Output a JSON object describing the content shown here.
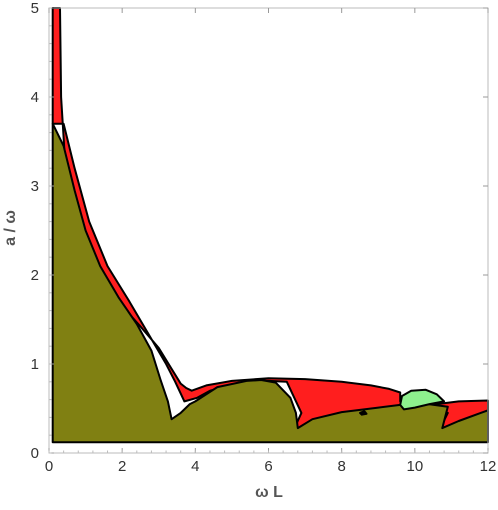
{
  "chart_data": {
    "type": "area",
    "title": "",
    "xlabel": "ω L",
    "ylabel": "a / ω",
    "xlim": [
      0,
      12
    ],
    "ylim": [
      0,
      5
    ],
    "xticks": [
      "0",
      "2",
      "4",
      "6",
      "8",
      "10",
      "12"
    ],
    "yticks": [
      "0",
      "1",
      "2",
      "3",
      "4",
      "5"
    ],
    "grid": false,
    "legend": "none",
    "colors": {
      "olive": "#808012",
      "red": "#ff1e1e",
      "green": "#8ef08e",
      "outline": "#000000"
    },
    "regions": [
      {
        "color": "red",
        "points": [
          [
            0.1,
            5.0
          ],
          [
            0.3,
            5.0
          ],
          [
            0.33,
            4.0
          ],
          [
            0.42,
            3.4
          ],
          [
            0.6,
            2.9
          ],
          [
            0.85,
            2.55
          ],
          [
            1.2,
            2.2
          ],
          [
            1.6,
            1.9
          ],
          [
            2.0,
            1.65
          ],
          [
            2.5,
            1.42
          ],
          [
            3.0,
            1.18
          ],
          [
            3.3,
            0.98
          ],
          [
            3.6,
            0.78
          ],
          [
            3.75,
            0.73
          ],
          [
            3.9,
            0.7
          ],
          [
            4.3,
            0.76
          ],
          [
            5.0,
            0.81
          ],
          [
            6.0,
            0.84
          ],
          [
            7.0,
            0.83
          ],
          [
            8.0,
            0.8
          ],
          [
            8.8,
            0.76
          ],
          [
            9.3,
            0.72
          ],
          [
            9.6,
            0.68
          ],
          [
            9.6,
            0.58
          ],
          [
            10.6,
            0.55
          ],
          [
            11.2,
            0.58
          ],
          [
            12.0,
            0.59
          ],
          [
            12.0,
            0.48
          ],
          [
            11.5,
            0.38
          ],
          [
            11.0,
            0.28
          ],
          [
            10.7,
            0.28
          ],
          [
            10.9,
            0.45
          ],
          [
            10.5,
            0.52
          ],
          [
            10.0,
            0.53
          ],
          [
            9.0,
            0.48
          ],
          [
            8.2,
            0.42
          ],
          [
            7.5,
            0.35
          ],
          [
            7.0,
            0.3
          ],
          [
            6.7,
            0.27
          ],
          [
            6.9,
            0.45
          ],
          [
            6.5,
            0.8
          ],
          [
            5.5,
            0.82
          ],
          [
            4.4,
            0.7
          ],
          [
            4.05,
            0.62
          ],
          [
            3.7,
            0.58
          ],
          [
            3.45,
            0.8
          ],
          [
            3.2,
            1.0
          ],
          [
            2.7,
            1.35
          ],
          [
            2.2,
            1.7
          ],
          [
            1.6,
            2.1
          ],
          [
            1.1,
            2.6
          ],
          [
            0.7,
            3.2
          ],
          [
            0.4,
            3.7
          ],
          [
            0.1,
            3.7
          ]
        ]
      },
      {
        "color": "olive",
        "points": [
          [
            0.1,
            0.12
          ],
          [
            0.1,
            3.7
          ],
          [
            0.4,
            3.45
          ],
          [
            0.7,
            2.95
          ],
          [
            1.0,
            2.5
          ],
          [
            1.4,
            2.1
          ],
          [
            1.9,
            1.75
          ],
          [
            2.4,
            1.45
          ],
          [
            2.8,
            1.15
          ],
          [
            3.05,
            0.82
          ],
          [
            3.25,
            0.58
          ],
          [
            3.35,
            0.38
          ],
          [
            3.6,
            0.45
          ],
          [
            3.85,
            0.55
          ],
          [
            4.0,
            0.58
          ],
          [
            4.6,
            0.74
          ],
          [
            5.4,
            0.81
          ],
          [
            5.8,
            0.82
          ],
          [
            6.2,
            0.79
          ],
          [
            6.6,
            0.62
          ],
          [
            6.75,
            0.45
          ],
          [
            6.8,
            0.28
          ],
          [
            7.2,
            0.38
          ],
          [
            8.0,
            0.46
          ],
          [
            9.0,
            0.51
          ],
          [
            9.6,
            0.54
          ],
          [
            10.2,
            0.56
          ],
          [
            10.9,
            0.52
          ],
          [
            10.75,
            0.28
          ],
          [
            11.2,
            0.36
          ],
          [
            11.8,
            0.45
          ],
          [
            12.0,
            0.48
          ],
          [
            12.0,
            0.12
          ]
        ]
      },
      {
        "color": "green",
        "points": [
          [
            9.6,
            0.54
          ],
          [
            9.65,
            0.64
          ],
          [
            9.9,
            0.7
          ],
          [
            10.3,
            0.71
          ],
          [
            10.6,
            0.66
          ],
          [
            10.8,
            0.58
          ],
          [
            10.4,
            0.55
          ],
          [
            10.0,
            0.51
          ],
          [
            9.7,
            0.49
          ]
        ]
      },
      {
        "color": "black",
        "points": [
          [
            8.5,
            0.45
          ],
          [
            8.62,
            0.47
          ],
          [
            8.68,
            0.44
          ],
          [
            8.55,
            0.43
          ]
        ]
      }
    ]
  }
}
